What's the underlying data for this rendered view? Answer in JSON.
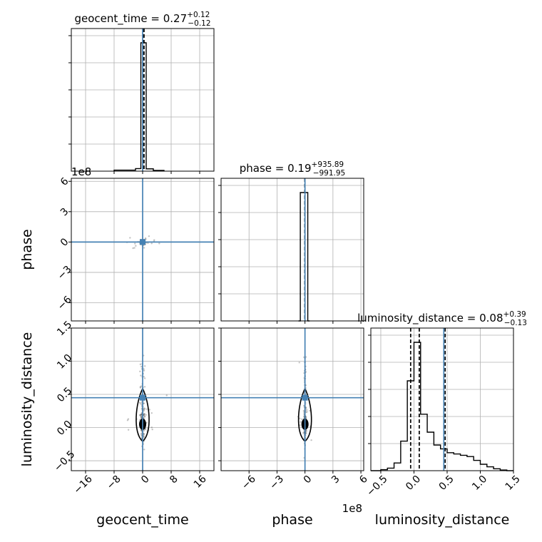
{
  "chart_data": {
    "type": "corner",
    "parameters": [
      "geocent_time",
      "phase",
      "luminosity_distance"
    ],
    "truth_color": "#4682b4",
    "titles": [
      {
        "param": "geocent_time",
        "median": "0.27",
        "plus": "+0.12",
        "minus": "−0.12"
      },
      {
        "param": "phase",
        "median": "0.19",
        "plus": "+935.89",
        "minus": "−991.95"
      },
      {
        "param": "luminosity_distance",
        "median": "0.08",
        "plus": "+0.39",
        "minus": "−0.13"
      }
    ],
    "axes": {
      "geocent_time": {
        "range": [
          -20,
          20
        ],
        "ticks": [
          -16,
          -8,
          0,
          8,
          16
        ],
        "tick_labels": [
          "−16",
          "−8",
          "0",
          "8",
          "16"
        ],
        "label": "geocent_time",
        "truth": 0
      },
      "phase": {
        "range": [
          -9,
          6.3
        ],
        "ticks": [
          -6,
          -3,
          0,
          3,
          6
        ],
        "tick_labels": [
          "−6",
          "−3",
          "0",
          "3",
          "6"
        ],
        "label": "phase",
        "offset_text": "1e8",
        "truth": 0
      },
      "luminosity_distance": {
        "range": [
          -0.65,
          1.5
        ],
        "ticks": [
          -0.5,
          0.0,
          0.5,
          1.0,
          1.5
        ],
        "tick_labels": [
          "−0.5",
          "0.0",
          "0.5",
          "1.0",
          "1.5"
        ],
        "label": "luminosity_distance",
        "truth": 0.45
      }
    },
    "phase_y_axis": {
      "range": [
        -7.8,
        6.3
      ],
      "ticks": [
        -6,
        -3,
        0,
        3,
        6
      ],
      "tick_labels": [
        "−6",
        "−3",
        "0",
        "3",
        "6"
      ],
      "offset_text": "1e8"
    },
    "histograms": {
      "geocent_time": {
        "quantiles": [
          0.15,
          0.27,
          0.39
        ],
        "bins": [
          [
            -8,
            -2,
            0.008
          ],
          [
            -2,
            -0.5,
            0.02
          ],
          [
            -0.5,
            1,
            1.0
          ],
          [
            1,
            3,
            0.018
          ],
          [
            3,
            6,
            0.006
          ]
        ]
      },
      "phase": {
        "quantiles": [
          -9.9e-06,
          2e-07,
          9.4e-06
        ],
        "bins": [
          [
            -0.7,
            -0.5,
            0.0
          ],
          [
            -0.5,
            0.3,
            1.0
          ],
          [
            0.3,
            0.5,
            0.0
          ]
        ]
      },
      "luminosity_distance": {
        "quantiles": [
          -0.05,
          0.08,
          0.47
        ],
        "bins": [
          [
            -0.65,
            -0.5,
            0.0
          ],
          [
            -0.5,
            -0.4,
            0.008
          ],
          [
            -0.4,
            -0.3,
            0.02
          ],
          [
            -0.3,
            -0.2,
            0.06
          ],
          [
            -0.2,
            -0.1,
            0.23
          ],
          [
            -0.1,
            0.0,
            0.7
          ],
          [
            0.0,
            0.1,
            1.0
          ],
          [
            0.1,
            0.2,
            0.44
          ],
          [
            0.2,
            0.3,
            0.3
          ],
          [
            0.3,
            0.4,
            0.2
          ],
          [
            0.4,
            0.5,
            0.17
          ],
          [
            0.5,
            0.6,
            0.14
          ],
          [
            0.6,
            0.7,
            0.13
          ],
          [
            0.7,
            0.8,
            0.12
          ],
          [
            0.8,
            0.9,
            0.11
          ],
          [
            0.9,
            1.0,
            0.08
          ],
          [
            1.0,
            1.1,
            0.05
          ],
          [
            1.1,
            1.2,
            0.03
          ],
          [
            1.2,
            1.3,
            0.015
          ],
          [
            1.3,
            1.4,
            0.005
          ],
          [
            1.4,
            1.5,
            0.0
          ]
        ]
      }
    },
    "grid": true
  }
}
